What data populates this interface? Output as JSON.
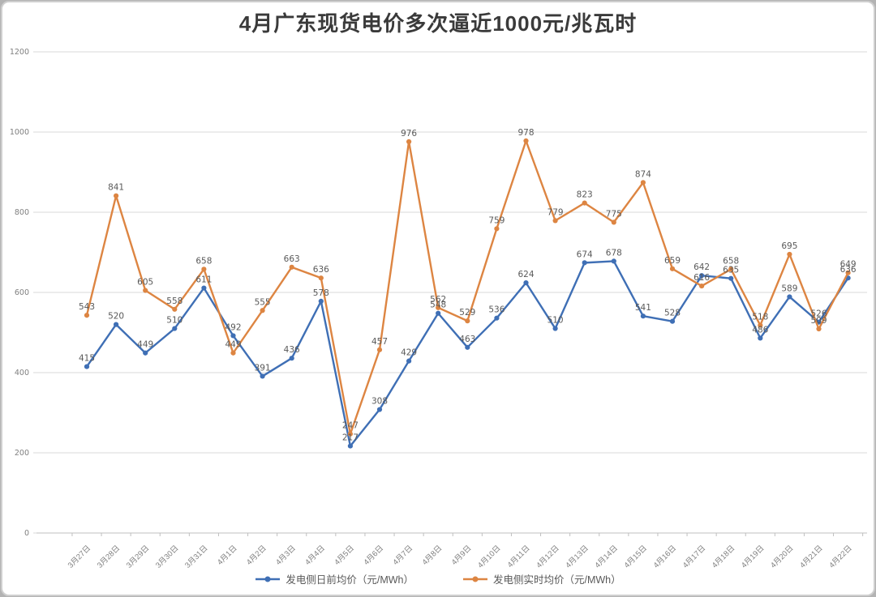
{
  "page": {
    "title": "4月广东现货电价多次逼近1000元/兆瓦时"
  },
  "chart_data": {
    "type": "line",
    "title": "4月广东现货电价多次逼近1000元/兆瓦时",
    "categories": [
      "3月27日",
      "3月28日",
      "3月29日",
      "3月30日",
      "3月31日",
      "4月1日",
      "4月2日",
      "4月3日",
      "4月4日",
      "4月5日",
      "4月6日",
      "4月7日",
      "4月8日",
      "4月9日",
      "4月10日",
      "4月11日",
      "4月12日",
      "4月13日",
      "4月14日",
      "4月15日",
      "4月16日",
      "4月17日",
      "4月18日",
      "4月19日",
      "4月20日",
      "4月21日",
      "4月22日"
    ],
    "series": [
      {
        "name": "发电侧日前均价（元/MWh）",
        "color": "#3f6fb5",
        "values": [
          415,
          520,
          449,
          510,
          611,
          492,
          391,
          436,
          578,
          217,
          308,
          429,
          548,
          463,
          536,
          624,
          510,
          674,
          678,
          541,
          528,
          642,
          635,
          486,
          589,
          526,
          636
        ]
      },
      {
        "name": "发电侧实时均价（元/MWh）",
        "color": "#dd8542",
        "values": [
          543,
          841,
          605,
          558,
          658,
          449,
          555,
          663,
          636,
          247,
          457,
          976,
          562,
          529,
          759,
          978,
          779,
          823,
          775,
          874,
          659,
          616,
          658,
          518,
          695,
          509,
          649
        ]
      }
    ],
    "ylim": [
      0,
      1200
    ],
    "yticks": [
      0,
      200,
      400,
      600,
      800,
      1000,
      1200
    ],
    "xlabel": "",
    "ylabel": "",
    "grid": "horizontal",
    "legend_position": "bottom",
    "data_labels": true,
    "colors": {
      "gridline": "#d9d9d9",
      "axis": "#bfbfbf",
      "data_label": "#595959",
      "tick_label": "#7f7f7f",
      "title": "#3a3a3a",
      "background": "#ffffff"
    }
  }
}
